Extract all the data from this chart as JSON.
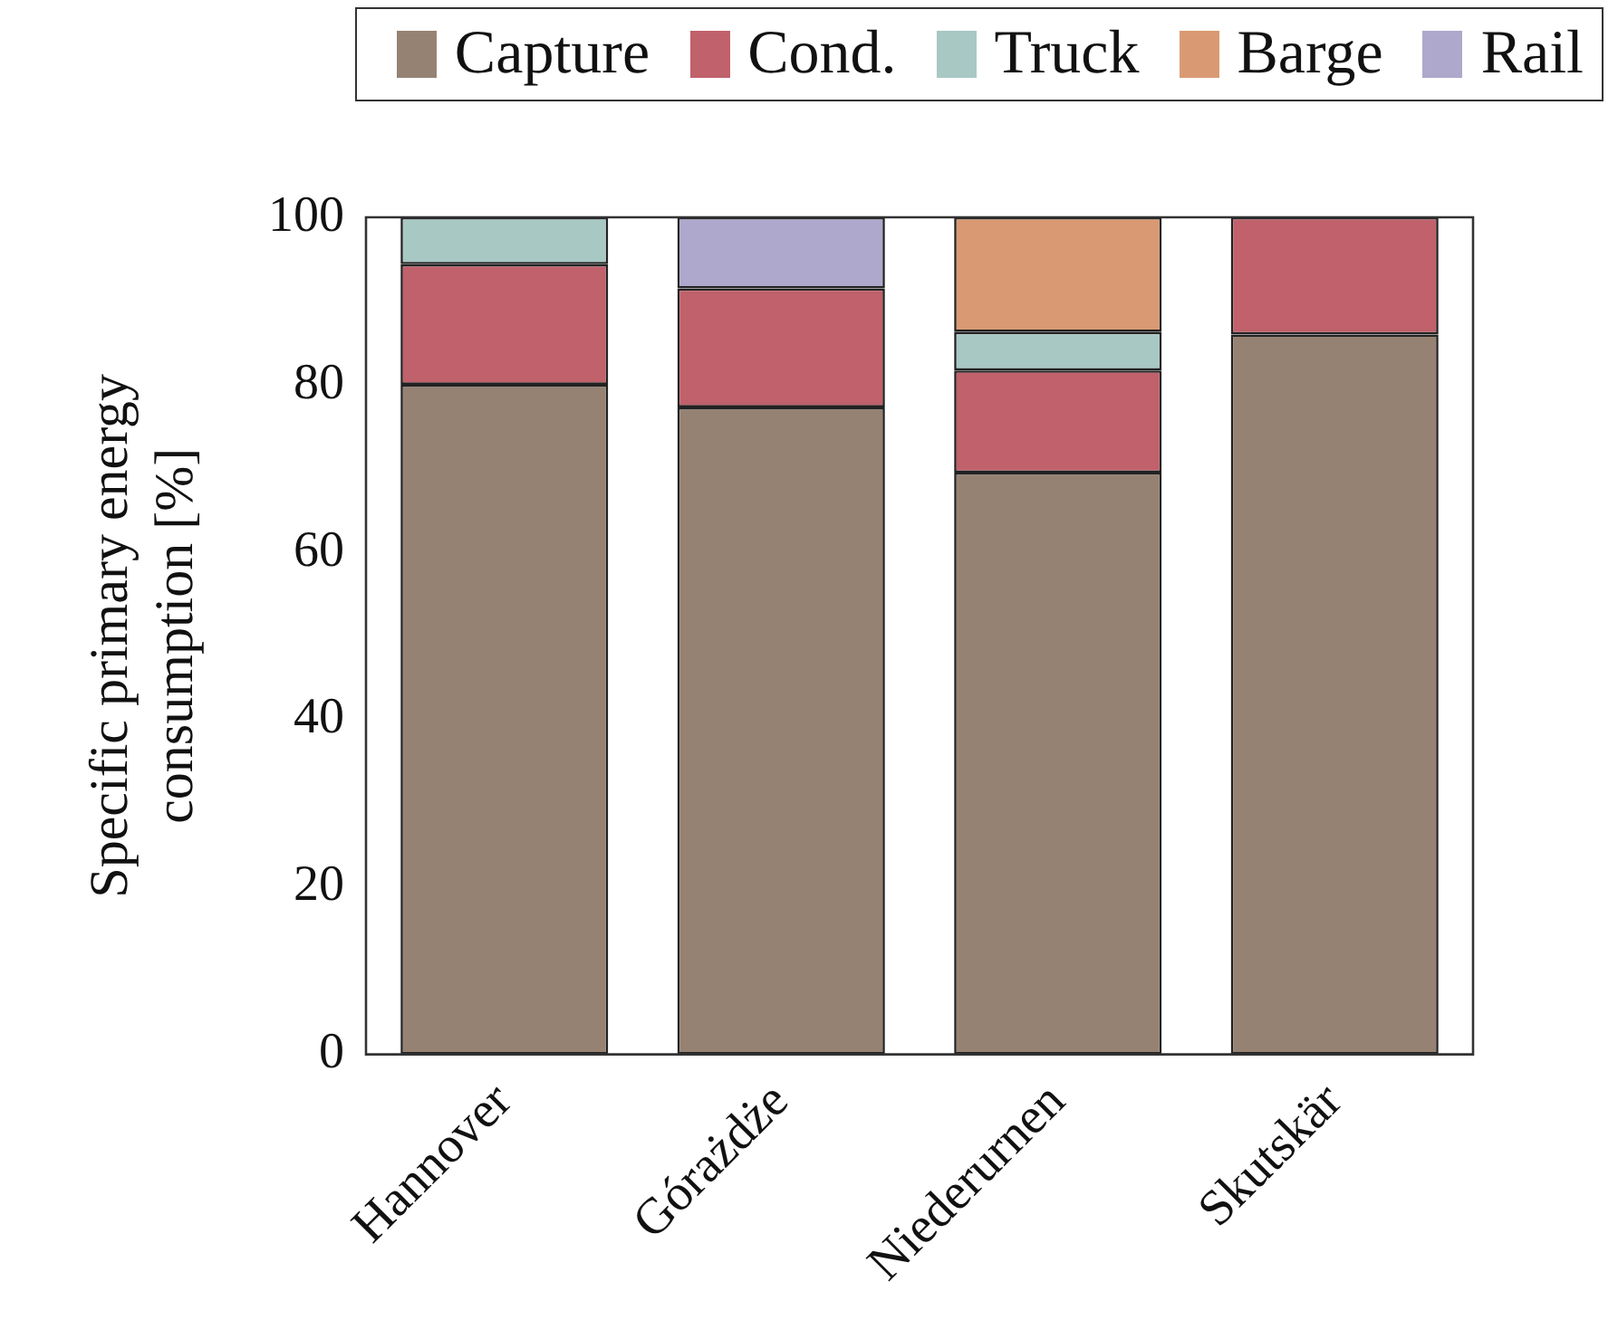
{
  "chart_data": {
    "type": "bar",
    "stacked": true,
    "ylabel": "Specific primary energy consumption [%]",
    "categories": [
      "Hannover",
      "Górażdże",
      "Niederurnen",
      "Skutskär"
    ],
    "series": [
      {
        "name": "Capture",
        "color": "#968273",
        "values": [
          80,
          77.3,
          69.5,
          86
        ]
      },
      {
        "name": "Cond.",
        "color": "#c0616b",
        "values": [
          14.4,
          14.2,
          12.2,
          14
        ]
      },
      {
        "name": "Truck",
        "color": "#a8c8c4",
        "values": [
          5.6,
          null,
          4.6,
          null
        ]
      },
      {
        "name": "Barge",
        "color": "#d99a73",
        "values": [
          null,
          null,
          13.7,
          null
        ]
      },
      {
        "name": "Rail",
        "color": "#aea8cc",
        "values": [
          null,
          8.5,
          null,
          null
        ]
      }
    ],
    "ylim": [
      0,
      100
    ],
    "yticks": [
      0,
      20,
      40,
      60,
      80,
      100
    ],
    "grid": false,
    "legend": "top"
  }
}
